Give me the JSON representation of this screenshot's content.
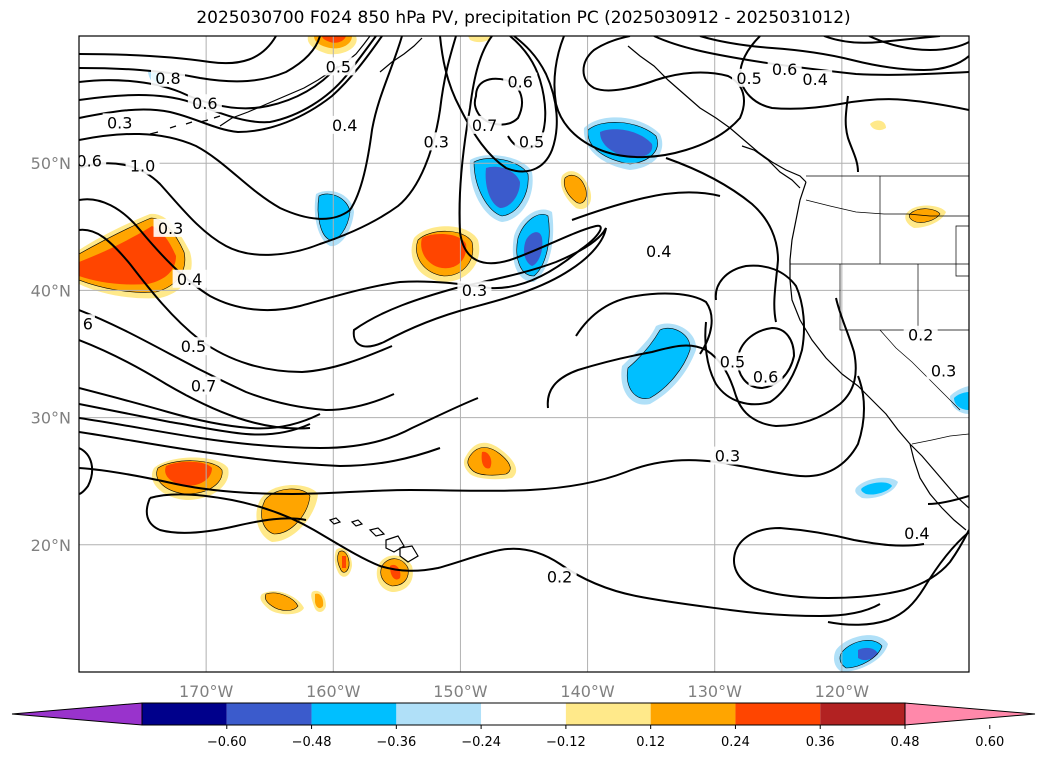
{
  "title": "2025030700 F024 850 hPa PV, precipitation PC (2025030912 - 2025031012)",
  "map": {
    "lon_range": [
      -180,
      -110
    ],
    "lat_range": [
      10,
      60
    ],
    "lat_ticks": [
      {
        "value": 20,
        "label": "20°N"
      },
      {
        "value": 30,
        "label": "30°N"
      },
      {
        "value": 40,
        "label": "40°N"
      },
      {
        "value": 50,
        "label": "50°N"
      }
    ],
    "lon_ticks": [
      {
        "value": -170,
        "label": "170°W"
      },
      {
        "value": -160,
        "label": "160°W"
      },
      {
        "value": -150,
        "label": "150°W"
      },
      {
        "value": -140,
        "label": "140°W"
      },
      {
        "value": -130,
        "label": "130°W"
      },
      {
        "value": -120,
        "label": "120°W"
      }
    ],
    "grid": true
  },
  "contour_labels": [
    {
      "text": "0.8",
      "lon": -173,
      "lat": 56.4
    },
    {
      "text": "0.6",
      "lon": -170.1,
      "lat": 54.4
    },
    {
      "text": "0.3",
      "lon": -176.8,
      "lat": 52.9
    },
    {
      "text": "0.6",
      "lon": -179.2,
      "lat": 49.9
    },
    {
      "text": "1.0",
      "lon": -175,
      "lat": 49.5
    },
    {
      "text": "0.3",
      "lon": -172.8,
      "lat": 44.6
    },
    {
      "text": "0.4",
      "lon": -171.3,
      "lat": 40.6
    },
    {
      "text": "6",
      "lon": -179.3,
      "lat": 37.1
    },
    {
      "text": "0.5",
      "lon": -171,
      "lat": 35.3
    },
    {
      "text": "0.7",
      "lon": -170.2,
      "lat": 32.2
    },
    {
      "text": "0.5",
      "lon": -159.6,
      "lat": 57.3
    },
    {
      "text": "0.4",
      "lon": -159.1,
      "lat": 52.7
    },
    {
      "text": "0.3",
      "lon": -151.9,
      "lat": 51.4
    },
    {
      "text": "0.6",
      "lon": -145.3,
      "lat": 56.1
    },
    {
      "text": "0.7",
      "lon": -148.1,
      "lat": 52.7
    },
    {
      "text": "0.5",
      "lon": -144.4,
      "lat": 51.4
    },
    {
      "text": "0.3",
      "lon": -148.9,
      "lat": 39.7
    },
    {
      "text": "0.4",
      "lon": -134.4,
      "lat": 42.8
    },
    {
      "text": "0.5",
      "lon": -127.3,
      "lat": 56.4
    },
    {
      "text": "0.6",
      "lon": -124.5,
      "lat": 57.1
    },
    {
      "text": "0.4",
      "lon": -122.1,
      "lat": 56.3
    },
    {
      "text": "0.5",
      "lon": -128.6,
      "lat": 34.1
    },
    {
      "text": "0.6",
      "lon": -126,
      "lat": 32.9
    },
    {
      "text": "0.2",
      "lon": -113.8,
      "lat": 36.2
    },
    {
      "text": "0.3",
      "lon": -112,
      "lat": 33.4
    },
    {
      "text": "0.3",
      "lon": -129,
      "lat": 26.7
    },
    {
      "text": "0.2",
      "lon": -142.2,
      "lat": 17.2
    },
    {
      "text": "0.4",
      "lon": -114.1,
      "lat": 20.6
    }
  ],
  "colorbar": {
    "ticks": [
      "−0.60",
      "−0.48",
      "−0.36",
      "−0.24",
      "−0.12",
      "0.12",
      "0.24",
      "0.36",
      "0.48",
      "0.60"
    ],
    "colors": [
      "#9933cc",
      "#00008b",
      "#3b5bcc",
      "#00bfff",
      "#b0e0f8",
      "#ffffff",
      "#ffe98a",
      "#ffa500",
      "#ff4500",
      "#b22222",
      "#ff88aa"
    ]
  }
}
